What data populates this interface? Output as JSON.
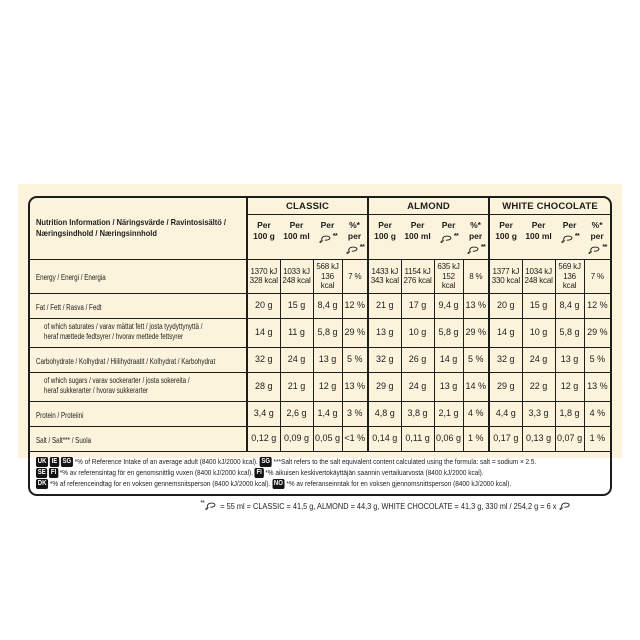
{
  "colors": {
    "page_background": "#ffffff",
    "panel_background": "#fbf3dc",
    "ink": "#1d1d1b",
    "badge_background": "#141414",
    "badge_text": "#ffffff"
  },
  "table": {
    "info_header": "Nutrition Information / Näringsvärde / Ravintosisältö /\nNæringsindhold / Næringsinnhold",
    "products": [
      "CLASSIC",
      "ALMOND",
      "WHITE CHOCOLATE"
    ],
    "sub_headers": {
      "per": "Per",
      "per_100g": "100 g",
      "per_100ml": "100 ml",
      "pct_per": "%* per",
      "portion_marker": "**",
      "portion_icon": "ice-cream-bar-icon"
    },
    "rows": [
      {
        "label": "Energy / Energi / Energia",
        "indent": false,
        "cells": [
          "1370 kJ\n328 kcal",
          "1033 kJ\n248 kcal",
          "568 kJ\n136 kcal",
          "7 %",
          "1433 kJ\n343 kcal",
          "1154 kJ\n276 kcal",
          "635 kJ\n152 kcal",
          "8 %",
          "1377 kJ\n330 kcal",
          "1034 kJ\n248 kcal",
          "569 kJ\n136 kcal",
          "7 %"
        ]
      },
      {
        "label": "Fat / Fett / Rasva / Fedt",
        "indent": false,
        "cells": [
          "20 g",
          "15 g",
          "8,4 g",
          "12 %",
          "21 g",
          "17 g",
          "9,4 g",
          "13 %",
          "20 g",
          "15 g",
          "8,4 g",
          "12 %"
        ]
      },
      {
        "label": "of which saturates / varav mättat fett / josta tyydyttynyttä /\nheraf mættede fedtsyrer / hvorav mettede fettsyrer",
        "indent": true,
        "cells": [
          "14 g",
          "11 g",
          "5,8 g",
          "29 %",
          "13 g",
          "10 g",
          "5,8 g",
          "29 %",
          "14 g",
          "10 g",
          "5,8 g",
          "29 %"
        ]
      },
      {
        "label": "Carbohydrate / Kolhydrat / Hiilihydraatit / Kolhydrat / Karbohydrat",
        "indent": false,
        "cells": [
          "32 g",
          "24 g",
          "13 g",
          "5 %",
          "32 g",
          "26 g",
          "14 g",
          "5 %",
          "32 g",
          "24 g",
          "13 g",
          "5 %"
        ]
      },
      {
        "label": "of which sugars / varav sockerarter / josta sokereita /\nheraf sukkerarter / hvorav sukkerarter",
        "indent": true,
        "cells": [
          "28 g",
          "21 g",
          "12 g",
          "13 %",
          "29 g",
          "24 g",
          "13 g",
          "14 %",
          "29 g",
          "22 g",
          "12 g",
          "13 %"
        ]
      },
      {
        "label": "Protein / Proteiini",
        "indent": false,
        "cells": [
          "3,4 g",
          "2,6 g",
          "1,4 g",
          "3 %",
          "4,8 g",
          "3,8 g",
          "2,1 g",
          "4 %",
          "4,4 g",
          "3,3 g",
          "1,8 g",
          "4 %"
        ]
      },
      {
        "label": "Salt / Salt*** / Suola",
        "indent": false,
        "cells": [
          "0,12 g",
          "0,09 g",
          "0,05 g",
          "<1 %",
          "0,14 g",
          "0,11 g",
          "0,06 g",
          "1 %",
          "0,17 g",
          "0,13 g",
          "0,07 g",
          "1 %"
        ]
      }
    ],
    "footnotes": [
      {
        "segments": [
          {
            "type": "badge",
            "value": "UK"
          },
          {
            "type": "badge",
            "value": "IE"
          },
          {
            "type": "badge",
            "value": "SG"
          },
          {
            "type": "text",
            "value": "*% of Reference Intake of an average adult (8400 kJ/2000 kcal). "
          },
          {
            "type": "badge",
            "value": "SG"
          },
          {
            "type": "text",
            "value": "***Salt refers to the salt equivalent content calculated using the formula: salt = sodium × 2.5."
          }
        ]
      },
      {
        "segments": [
          {
            "type": "badge",
            "value": "SE"
          },
          {
            "type": "badge",
            "value": "FI"
          },
          {
            "type": "text",
            "value": "*% av referensintag för en genomsnittlig vuxen (8400 kJ/2000 kcal). "
          },
          {
            "type": "badge",
            "value": "FI"
          },
          {
            "type": "text",
            "value": "*% aikuisen keskivertokäyttäjän saannin vertailuarvosta (8400 kJ/2000 kcal)."
          }
        ]
      },
      {
        "segments": [
          {
            "type": "badge",
            "value": "DK"
          },
          {
            "type": "text",
            "value": "*% af referenceindtag for en voksen gennemsnitsperson (8400 kJ/2000 kcal). "
          },
          {
            "type": "badge",
            "value": "NO"
          },
          {
            "type": "text",
            "value": "*% av referanseinntak for en voksen gjennomsnittsperson (8400 kJ/2000 kcal)."
          }
        ]
      }
    ]
  },
  "portion_note": {
    "segments": [
      {
        "type": "sup",
        "value": "**"
      },
      {
        "type": "icon"
      },
      {
        "type": "text",
        "value": " = 55 ml = CLASSIC = 41,5 g, ALMOND = 44,3 g, WHITE CHOCOLATE = 41,3 g, 330 ml / 254,2 g = 6 x "
      },
      {
        "type": "icon"
      }
    ]
  }
}
